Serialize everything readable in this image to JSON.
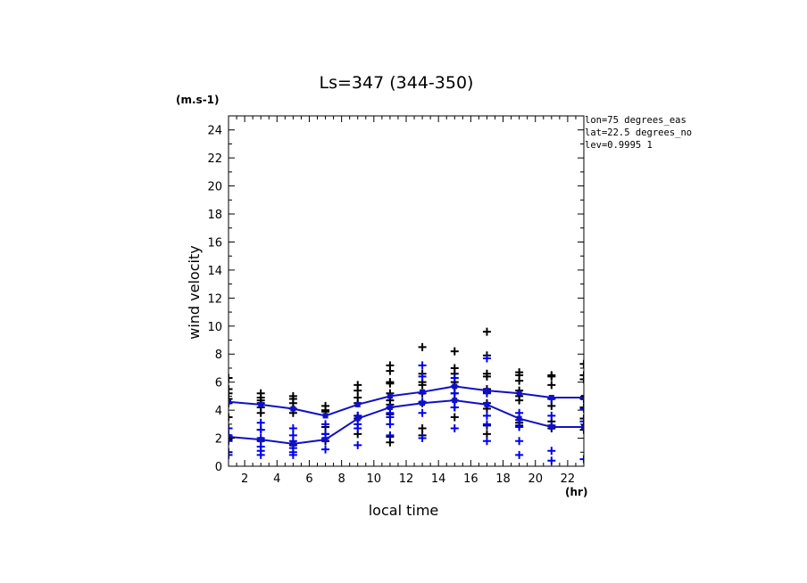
{
  "chart_data": {
    "type": "scatter",
    "title": "Ls=347 (344-350)",
    "xlabel": "local time",
    "ylabel": "wind velocity",
    "x_unit": "(hr)",
    "y_unit": "(m.s-1)",
    "xlim": [
      1,
      23
    ],
    "ylim": [
      0,
      25
    ],
    "xticks": [
      2,
      4,
      6,
      8,
      10,
      12,
      14,
      16,
      18,
      20,
      22
    ],
    "yticks": [
      0,
      2,
      4,
      6,
      8,
      10,
      12,
      14,
      16,
      18,
      20,
      22,
      24
    ],
    "annotations": [
      "lon=75 degrees_eas",
      "lat=22.5 degrees_no",
      "lev=0.9995 1"
    ],
    "colors": {
      "black": "#000000",
      "blue": "#0000ee",
      "line": "#1010c8"
    },
    "black_points": {
      "x": [
        1,
        1,
        1,
        1,
        1,
        1,
        1,
        1,
        1,
        3,
        3,
        3,
        3,
        3,
        3,
        3,
        3,
        5,
        5,
        5,
        5,
        5,
        5,
        7,
        7,
        7,
        7,
        7,
        7,
        9,
        9,
        9,
        9,
        9,
        9,
        9,
        11,
        11,
        11,
        11,
        11,
        11,
        11,
        11,
        11,
        11,
        13,
        13,
        13,
        13,
        13,
        13,
        13,
        13,
        15,
        15,
        15,
        15,
        15,
        15,
        15,
        15,
        15,
        17,
        17,
        17,
        17,
        17,
        17,
        17,
        17,
        17,
        17,
        19,
        19,
        19,
        19,
        19,
        19,
        19,
        19,
        21,
        21,
        21,
        21,
        21,
        21,
        21,
        21,
        23,
        23,
        23,
        23,
        23,
        23,
        23,
        23
      ],
      "y": [
        6.3,
        5.5,
        5.2,
        4.8,
        4.5,
        3.5,
        2.7,
        2.0,
        1.9,
        5.2,
        4.9,
        4.7,
        4.5,
        4.2,
        3.8,
        2.6,
        1.8,
        5.0,
        4.8,
        4.5,
        4.1,
        3.8,
        1.5,
        4.3,
        4.0,
        3.9,
        2.8,
        2.3,
        1.8,
        5.8,
        5.4,
        4.9,
        4.5,
        3.6,
        3.4,
        2.3,
        7.2,
        6.8,
        6.0,
        5.9,
        5.2,
        4.7,
        4.4,
        3.7,
        2.1,
        1.7,
        8.5,
        6.6,
        6.0,
        5.8,
        5.2,
        4.5,
        2.7,
        2.2,
        8.2,
        7.0,
        6.6,
        6.0,
        5.7,
        5.2,
        4.7,
        4.2,
        3.5,
        9.6,
        7.9,
        6.6,
        6.4,
        5.5,
        5.3,
        4.5,
        4.1,
        2.9,
        2.3,
        6.7,
        6.5,
        6.1,
        5.4,
        5.0,
        4.7,
        3.1,
        2.9,
        6.5,
        6.4,
        5.8,
        4.8,
        4.3,
        3.2,
        2.9,
        2.7,
        7.3,
        6.5,
        6.2,
        4.8,
        4.2,
        3.4,
        2.8,
        2.6
      ]
    },
    "blue_points": {
      "x": [
        1,
        1,
        1,
        1,
        1,
        3,
        3,
        3,
        3,
        3,
        3,
        5,
        5,
        5,
        5,
        5,
        5,
        7,
        7,
        7,
        7,
        9,
        9,
        9,
        9,
        11,
        11,
        11,
        11,
        11,
        13,
        13,
        13,
        13,
        13,
        15,
        15,
        15,
        15,
        17,
        17,
        17,
        17,
        17,
        19,
        19,
        19,
        19,
        19,
        21,
        21,
        21,
        21,
        21,
        23,
        23,
        23,
        23
      ],
      "y": [
        2.7,
        2.2,
        1.8,
        1.0,
        0.8,
        3.1,
        2.6,
        2.0,
        1.4,
        1.1,
        0.8,
        2.7,
        2.2,
        1.8,
        1.3,
        1.0,
        0.8,
        3.0,
        2.3,
        2.0,
        1.2,
        3.6,
        3.0,
        2.7,
        1.5,
        4.2,
        3.8,
        3.5,
        3.0,
        2.2,
        7.2,
        6.4,
        4.6,
        3.8,
        2.0,
        6.3,
        5.2,
        4.2,
        2.7,
        7.7,
        5.2,
        3.6,
        3.0,
        1.8,
        3.8,
        3.3,
        2.8,
        1.8,
        0.8,
        4.8,
        3.6,
        2.9,
        1.1,
        0.4,
        4.1,
        3.2,
        2.8,
        0.5
      ]
    },
    "series": [
      {
        "x": [
          1,
          3,
          5,
          7,
          9,
          11,
          13,
          15,
          17,
          19,
          21,
          23
        ],
        "values": [
          4.6,
          4.4,
          4.1,
          3.6,
          4.4,
          5.0,
          5.3,
          5.7,
          5.4,
          5.2,
          4.9,
          4.9
        ]
      },
      {
        "x": [
          1,
          3,
          5,
          7,
          9,
          11,
          13,
          15,
          17,
          19,
          21,
          23
        ],
        "values": [
          2.1,
          1.9,
          1.6,
          1.9,
          3.4,
          4.2,
          4.5,
          4.7,
          4.4,
          3.4,
          2.8,
          2.8
        ]
      }
    ]
  }
}
